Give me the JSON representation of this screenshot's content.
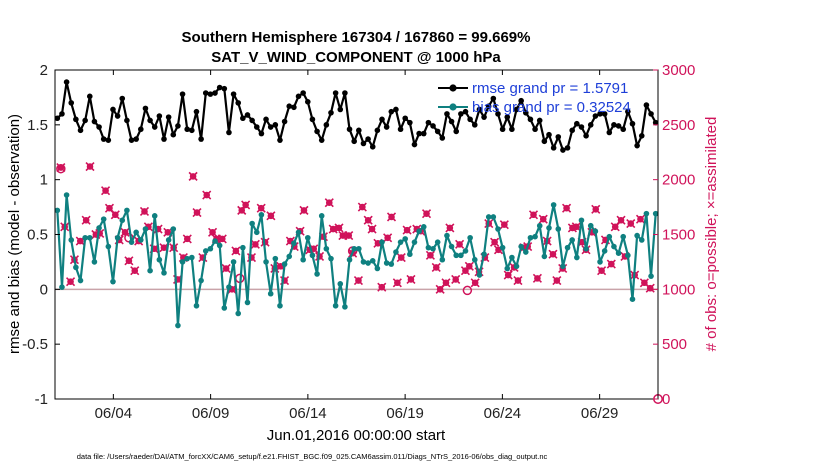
{
  "chart_data": {
    "type": "line",
    "title_line1": "Southern Hemisphere 167304 / 167860 = 99.669%",
    "title_line2": "SAT_V_WIND_COMPONENT @ 1000 hPa",
    "xlabel": "Jun.01,2016 00:00:00 start",
    "ylabel_left": "rmse and bias (model - observation)",
    "ylabel_right": "# of obs: o=possible; ×=assimilated",
    "xlim": [
      0,
      31
    ],
    "ylim_left": [
      -1,
      2
    ],
    "ylim_right": [
      0,
      3000
    ],
    "x_ticks": [
      3,
      8,
      13,
      18,
      23,
      28
    ],
    "x_tick_labels": [
      "06/04",
      "06/09",
      "06/14",
      "06/19",
      "06/24",
      "06/29"
    ],
    "y_ticks_left": [
      -1,
      -0.5,
      0,
      0.5,
      1,
      1.5,
      2
    ],
    "y_tick_labels_left": [
      "-1",
      "-0.5",
      "0",
      "0.5",
      "1",
      "1.5",
      "2"
    ],
    "y_ticks_right": [
      0,
      500,
      1000,
      1500,
      2000,
      2500,
      3000
    ],
    "y_tick_labels_right": [
      "0",
      "500",
      "1000",
      "1500",
      "2000",
      "2500",
      "3000"
    ],
    "legend": [
      {
        "label": "rmse grand pr = 1.5791",
        "color": "#000000"
      },
      {
        "label": "bias grand pr = 0.32524",
        "color": "#0f8080"
      }
    ],
    "colors": {
      "rmse": "#000000",
      "bias": "#0f8080",
      "obs": "#d0135a",
      "zero_line": "#c9a3a9"
    },
    "rmse": [
      1.56,
      1.6,
      1.89,
      1.7,
      1.55,
      1.45,
      1.54,
      1.76,
      1.53,
      1.48,
      1.37,
      1.36,
      1.64,
      1.58,
      1.74,
      1.54,
      1.36,
      1.37,
      1.46,
      1.65,
      1.54,
      1.48,
      1.58,
      1.37,
      1.57,
      1.41,
      1.49,
      1.78,
      1.46,
      1.45,
      1.62,
      1.37,
      1.79,
      1.78,
      1.79,
      1.84,
      1.83,
      1.43,
      1.78,
      1.7,
      1.56,
      1.59,
      1.54,
      1.48,
      1.42,
      1.55,
      1.48,
      1.5,
      1.36,
      1.53,
      1.67,
      1.66,
      1.76,
      1.79,
      1.71,
      1.55,
      1.44,
      1.36,
      1.5,
      1.61,
      1.79,
      1.64,
      1.79,
      1.46,
      1.35,
      1.45,
      1.33,
      1.37,
      1.3,
      1.45,
      1.55,
      1.48,
      1.62,
      1.64,
      1.46,
      1.56,
      1.52,
      1.32,
      1.42,
      1.42,
      1.52,
      1.49,
      1.44,
      1.38,
      1.6,
      1.53,
      1.44,
      1.6,
      1.62,
      1.55,
      1.5,
      1.64,
      1.57,
      1.67,
      1.74,
      1.6,
      1.46,
      1.57,
      1.46,
      1.64,
      1.72,
      1.61,
      1.55,
      1.46,
      1.54,
      1.35,
      1.41,
      1.29,
      1.39,
      1.27,
      1.29,
      1.45,
      1.51,
      1.48,
      1.4,
      1.5,
      1.58,
      1.6,
      1.6,
      1.43,
      1.5,
      1.49,
      1.46,
      1.62,
      1.51,
      1.31,
      1.4,
      1.68,
      1.6,
      1.52
    ],
    "bias": [
      0.72,
      0.02,
      0.86,
      0.45,
      0.2,
      0.08,
      0.47,
      0.47,
      0.25,
      0.56,
      0.64,
      0.39,
      0.07,
      0.47,
      0.63,
      0.72,
      0.43,
      0.52,
      0.45,
      0.55,
      0.17,
      0.67,
      0.27,
      0.15,
      0.45,
      0.55,
      -0.33,
      0.25,
      0.28,
      0.29,
      -0.15,
      0.08,
      0.35,
      0.37,
      0.44,
      0.4,
      -0.17,
      0.02,
      0.25,
      -0.22,
      0.38,
      -0.12,
      0.6,
      0.52,
      0.68,
      0.25,
      -0.04,
      0.28,
      -0.15,
      0.23,
      0.3,
      0.42,
      0.52,
      0.27,
      0.47,
      0.31,
      0.14,
      0.67,
      0.37,
      0.28,
      -0.15,
      0.05,
      -0.16,
      0.27,
      0.37,
      0.37,
      0.25,
      0.24,
      0.26,
      0.19,
      0.43,
      0.24,
      0.23,
      0.34,
      0.43,
      0.46,
      0.32,
      0.43,
      0.53,
      0.57,
      0.38,
      0.37,
      0.43,
      0.27,
      0.49,
      0.39,
      0.31,
      0.31,
      0.35,
      0.47,
      0.27,
      0.13,
      0.32,
      0.66,
      0.66,
      0.55,
      0.38,
      0.19,
      0.29,
      0.21,
      0.39,
      0.34,
      0.47,
      0.48,
      0.58,
      0.3,
      0.56,
      0.77,
      0.55,
      0.21,
      0.38,
      0.45,
      0.29,
      0.63,
      0.37,
      0.58,
      0.53,
      0.25,
      0.35,
      0.48,
      0.39,
      0.33,
      0.48,
      0.31,
      -0.09,
      0.49,
      0.45,
      0.69,
      0.12,
      0.69
    ],
    "obs_assimilated": [
      [
        0.3,
        2110
      ],
      [
        0.5,
        1570
      ],
      [
        0.8,
        1070
      ],
      [
        1.0,
        1270
      ],
      [
        1.3,
        1440
      ],
      [
        1.6,
        1630
      ],
      [
        1.8,
        2120
      ],
      [
        2.1,
        1500
      ],
      [
        2.3,
        1510
      ],
      [
        2.6,
        1900
      ],
      [
        2.8,
        1740
      ],
      [
        3.1,
        1680
      ],
      [
        3.3,
        1450
      ],
      [
        3.6,
        1520
      ],
      [
        3.8,
        1260
      ],
      [
        4.1,
        1170
      ],
      [
        4.3,
        1440
      ],
      [
        4.6,
        1710
      ],
      [
        4.8,
        1570
      ],
      [
        5.1,
        1370
      ],
      [
        5.3,
        1550
      ],
      [
        5.6,
        1380
      ],
      [
        5.8,
        1520
      ],
      [
        6.1,
        1380
      ],
      [
        6.3,
        1090
      ],
      [
        6.6,
        1290
      ],
      [
        6.8,
        1460
      ],
      [
        7.1,
        2030
      ],
      [
        7.3,
        1700
      ],
      [
        7.6,
        1290
      ],
      [
        7.8,
        1860
      ],
      [
        8.1,
        1520
      ],
      [
        8.3,
        1460
      ],
      [
        8.6,
        1460
      ],
      [
        8.8,
        1190
      ],
      [
        9.1,
        1000
      ],
      [
        9.3,
        1350
      ],
      [
        9.6,
        1720
      ],
      [
        9.8,
        1770
      ],
      [
        10.1,
        1290
      ],
      [
        10.3,
        1410
      ],
      [
        10.6,
        1740
      ],
      [
        10.8,
        1430
      ],
      [
        11.1,
        1670
      ],
      [
        11.3,
        1190
      ],
      [
        11.6,
        1210
      ],
      [
        11.8,
        1080
      ],
      [
        12.1,
        1440
      ],
      [
        12.3,
        1390
      ],
      [
        12.6,
        1530
      ],
      [
        12.8,
        1720
      ],
      [
        13.1,
        1360
      ],
      [
        13.3,
        1370
      ],
      [
        13.6,
        1300
      ],
      [
        13.8,
        1480
      ],
      [
        14.1,
        1790
      ],
      [
        14.3,
        1550
      ],
      [
        14.6,
        1560
      ],
      [
        14.8,
        1490
      ],
      [
        15.1,
        1490
      ],
      [
        15.3,
        1330
      ],
      [
        15.6,
        1080
      ],
      [
        15.8,
        1750
      ],
      [
        16.1,
        1630
      ],
      [
        16.3,
        1550
      ],
      [
        16.6,
        1420
      ],
      [
        16.8,
        1020
      ],
      [
        17.1,
        1470
      ],
      [
        17.3,
        1660
      ],
      [
        17.6,
        1060
      ],
      [
        17.8,
        1290
      ],
      [
        18.1,
        1540
      ],
      [
        18.3,
        1090
      ],
      [
        18.6,
        1550
      ],
      [
        18.8,
        1530
      ],
      [
        19.1,
        1690
      ],
      [
        19.3,
        1310
      ],
      [
        19.6,
        1200
      ],
      [
        19.8,
        1000
      ],
      [
        20.1,
        1060
      ],
      [
        20.3,
        1560
      ],
      [
        20.6,
        1090
      ],
      [
        20.8,
        1410
      ],
      [
        21.1,
        1170
      ],
      [
        21.3,
        1210
      ],
      [
        21.6,
        1060
      ],
      [
        21.8,
        1160
      ],
      [
        22.1,
        1290
      ],
      [
        22.3,
        1600
      ],
      [
        22.6,
        1430
      ],
      [
        22.8,
        1360
      ],
      [
        23.1,
        1590
      ],
      [
        23.3,
        1130
      ],
      [
        23.6,
        1200
      ],
      [
        23.8,
        1080
      ],
      [
        24.1,
        1380
      ],
      [
        24.3,
        1390
      ],
      [
        24.6,
        1680
      ],
      [
        24.8,
        1100
      ],
      [
        25.1,
        1640
      ],
      [
        25.3,
        1440
      ],
      [
        25.6,
        1320
      ],
      [
        25.8,
        1080
      ],
      [
        26.1,
        1190
      ],
      [
        26.3,
        1740
      ],
      [
        26.6,
        1560
      ],
      [
        26.8,
        1570
      ],
      [
        27.1,
        1430
      ],
      [
        27.3,
        1360
      ],
      [
        27.6,
        1520
      ],
      [
        27.8,
        1730
      ],
      [
        28.1,
        1170
      ],
      [
        28.3,
        1450
      ],
      [
        28.6,
        1230
      ],
      [
        28.8,
        1570
      ],
      [
        29.1,
        1630
      ],
      [
        29.3,
        1300
      ],
      [
        29.6,
        1600
      ],
      [
        29.8,
        1130
      ],
      [
        30.1,
        1640
      ],
      [
        30.3,
        1060
      ],
      [
        30.6,
        1010
      ]
    ],
    "obs_possible_extra": [
      [
        0.3,
        2100
      ],
      [
        3.8,
        1470
      ],
      [
        9.5,
        1100
      ],
      [
        15.3,
        1350
      ],
      [
        21.2,
        990
      ]
    ]
  }
}
